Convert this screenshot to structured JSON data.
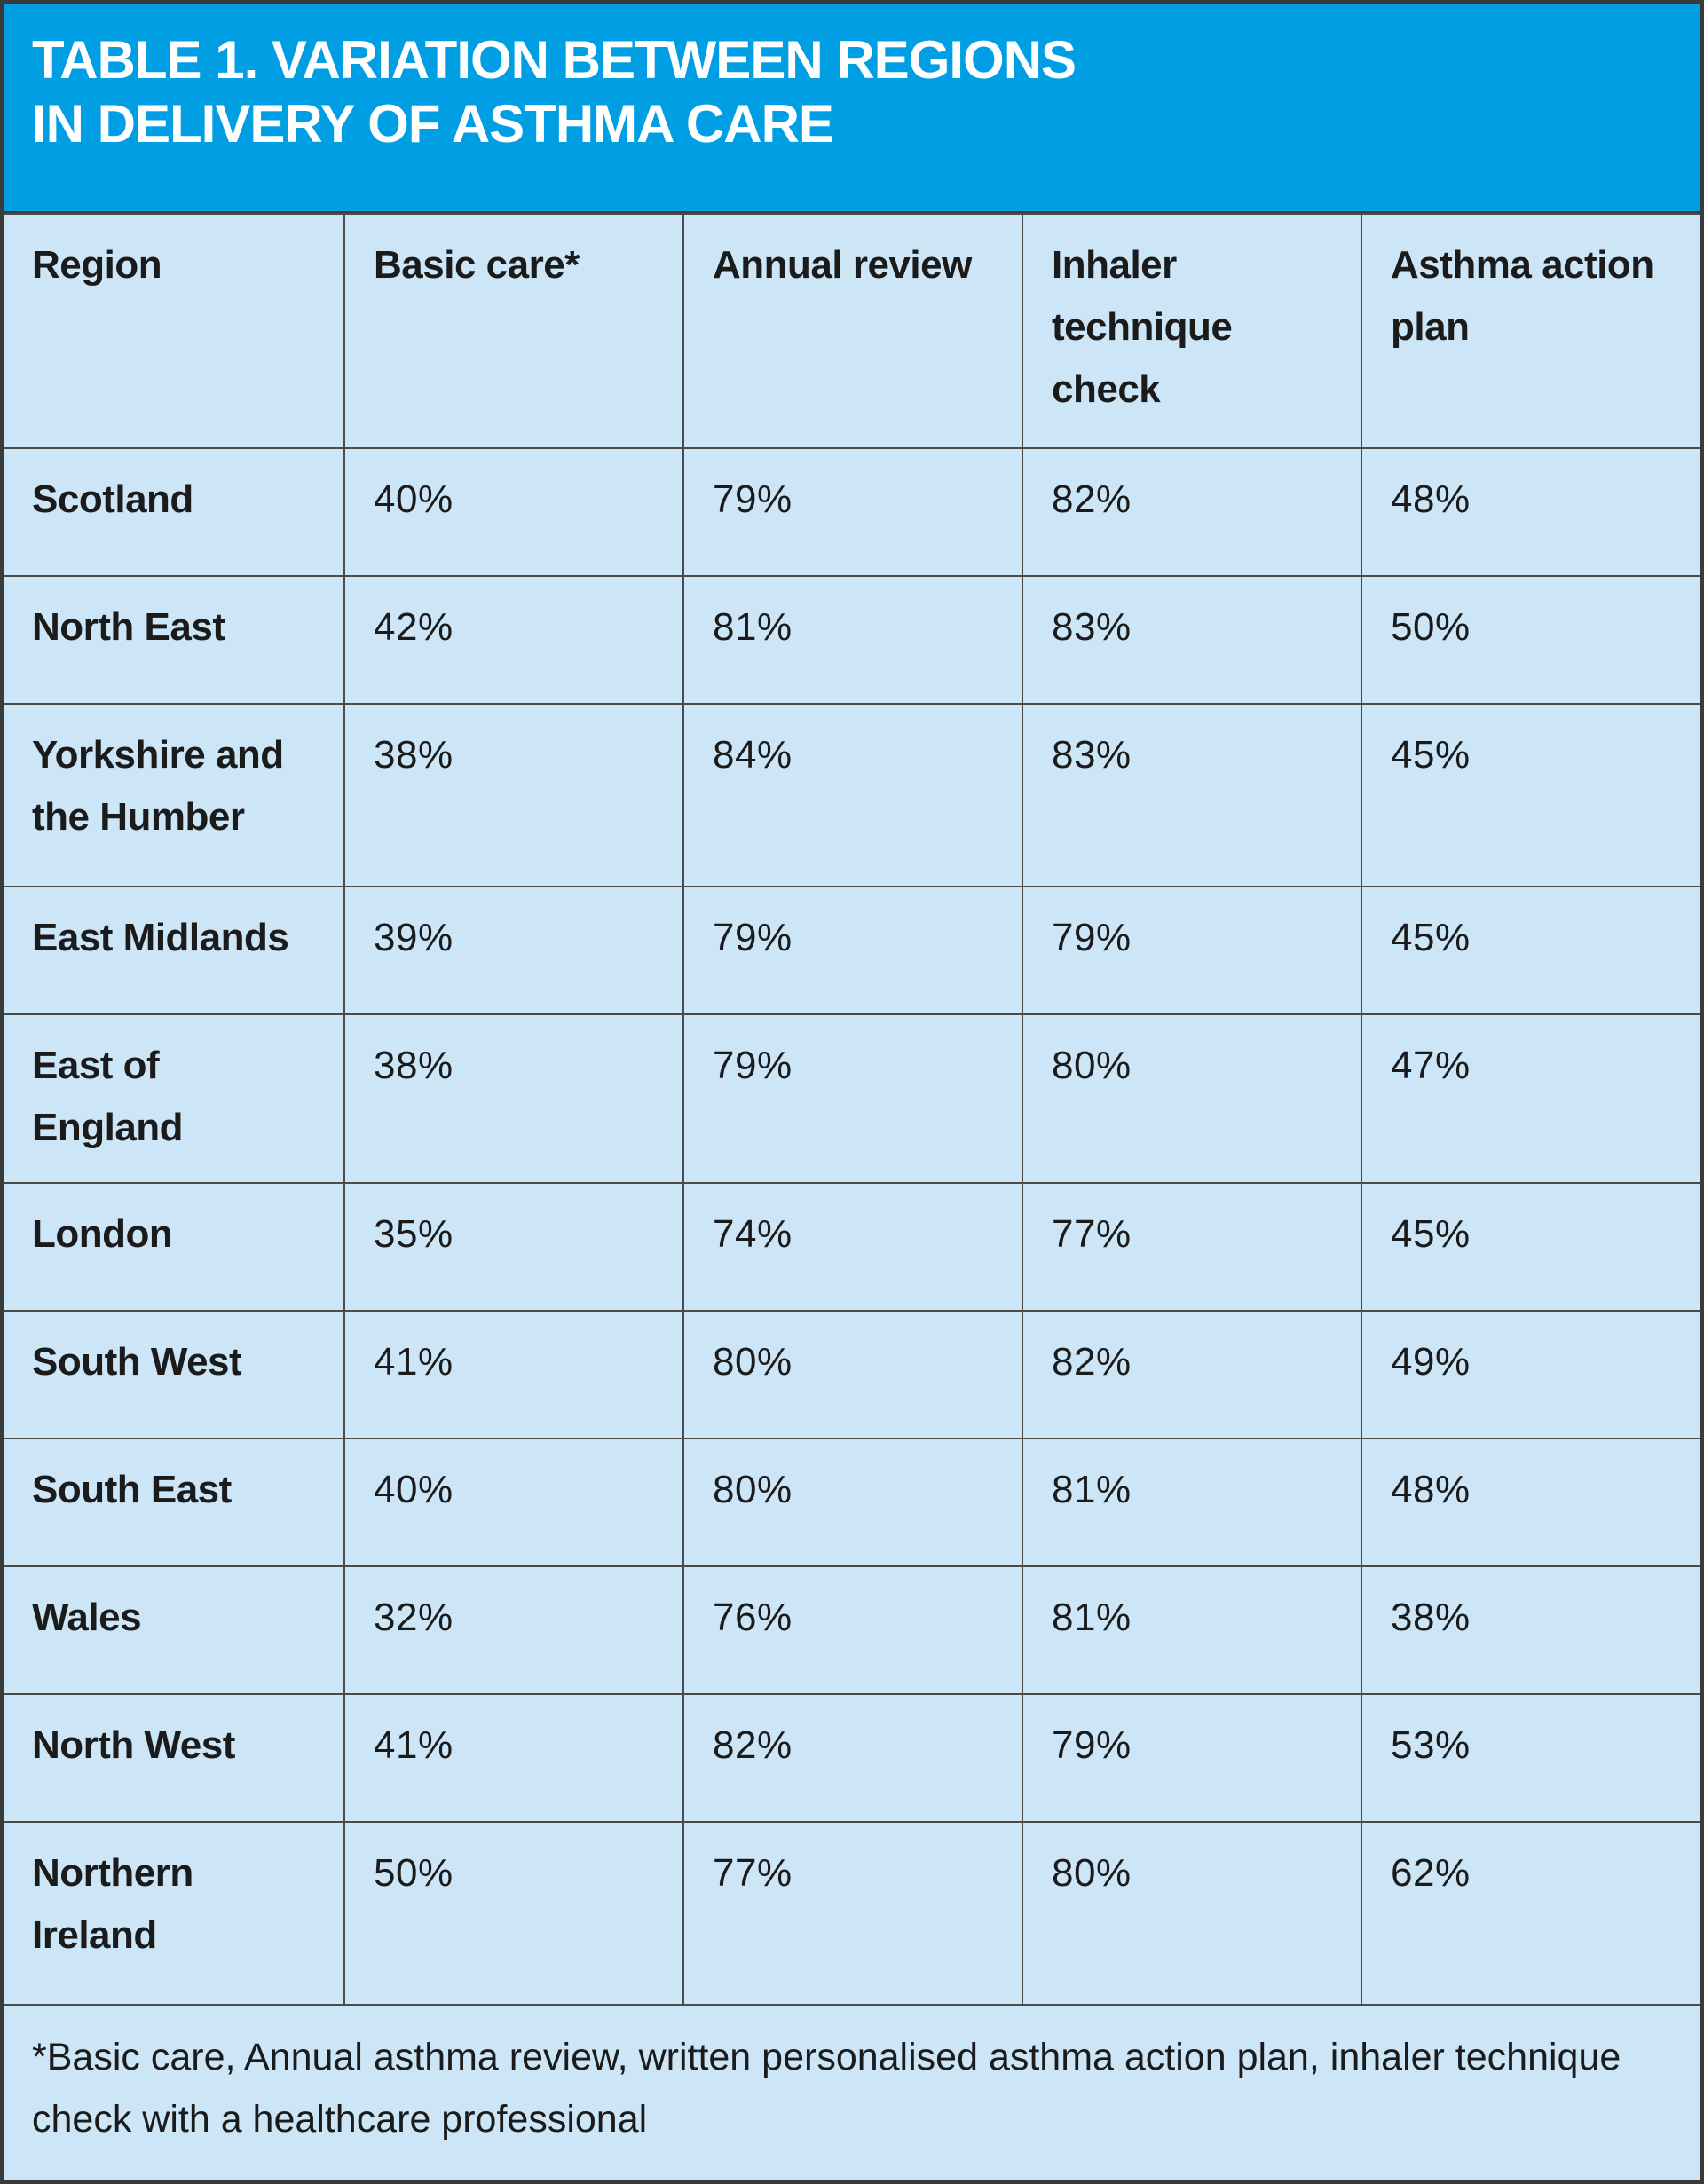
{
  "title": {
    "line1": "TABLE 1. VARIATION BETWEEN REGIONS",
    "line2": "IN DELIVERY OF ASTHMA CARE"
  },
  "table": {
    "headers": [
      "Region",
      "Basic care*",
      "Annual review",
      "Inhaler technique check",
      "Asthma action plan"
    ],
    "rows": [
      {
        "region": "Scotland",
        "basic_care": "40%",
        "annual_review": "79%",
        "inhaler_check": "82%",
        "action_plan": "48%"
      },
      {
        "region": "North East",
        "basic_care": "42%",
        "annual_review": "81%",
        "inhaler_check": "83%",
        "action_plan": "50%"
      },
      {
        "region": "Yorkshire and the Humber",
        "basic_care": "38%",
        "annual_review": "84%",
        "inhaler_check": "83%",
        "action_plan": "45%"
      },
      {
        "region": "East Midlands",
        "basic_care": "39%",
        "annual_review": "79%",
        "inhaler_check": "79%",
        "action_plan": "45%"
      },
      {
        "region": "East of England",
        "basic_care": "38%",
        "annual_review": "79%",
        "inhaler_check": "80%",
        "action_plan": "47%"
      },
      {
        "region": "London",
        "basic_care": "35%",
        "annual_review": "74%",
        "inhaler_check": "77%",
        "action_plan": "45%"
      },
      {
        "region": "South West",
        "basic_care": "41%",
        "annual_review": "80%",
        "inhaler_check": "82%",
        "action_plan": "49%"
      },
      {
        "region": "South East",
        "basic_care": "40%",
        "annual_review": "80%",
        "inhaler_check": "81%",
        "action_plan": "48%"
      },
      {
        "region": "Wales",
        "basic_care": "32%",
        "annual_review": "76%",
        "inhaler_check": "81%",
        "action_plan": "38%"
      },
      {
        "region": "North West",
        "basic_care": "41%",
        "annual_review": "82%",
        "inhaler_check": "79%",
        "action_plan": "53%"
      },
      {
        "region": "Northern Ireland",
        "basic_care": "50%",
        "annual_review": "77%",
        "inhaler_check": "80%",
        "action_plan": "62%"
      }
    ]
  },
  "footnote": "*Basic care, Annual asthma review, written personalised asthma action plan, inhaler technique check with a healthcare professional",
  "colors": {
    "title_background": "#009fe3",
    "table_background": "#cde6f7",
    "grid_lines": "#4a4a4a"
  }
}
